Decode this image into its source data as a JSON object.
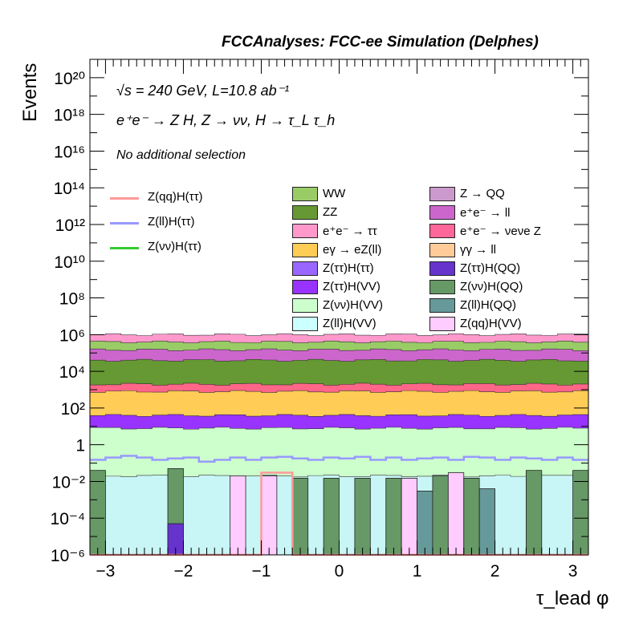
{
  "header": "FCCAnalyses: FCC-ee Simulation (Delphes)",
  "energy_label": "√s = 240 GeV, L=10.8 ab⁻¹",
  "process_label": "e⁺e⁻ → Z H, Z → νν, H → τ_L τ_h",
  "selection_label": "No additional selection",
  "chart_data": {
    "type": "bar",
    "stacked": true,
    "log_y": true,
    "xlabel": "τ_lead φ",
    "ylabel": "Events",
    "xlim": [
      -3.2,
      3.2
    ],
    "ylim": [
      1e-06,
      1e+21
    ],
    "x_ticks": [
      "−3",
      "−2",
      "−1",
      "0",
      "1",
      "2",
      "3"
    ],
    "y_ticks": [
      "10⁻⁶",
      "10⁻⁴",
      "10⁻²",
      "1",
      "10²",
      "10⁴",
      "10⁶",
      "10⁸",
      "10¹⁰",
      "10¹²",
      "10¹⁴",
      "10¹⁶",
      "10¹⁸",
      "10²⁰"
    ],
    "bins": 32,
    "stack_approx_levels": [
      {
        "name": "Z(ll)H(VV)",
        "color": "#c8f5f5",
        "value": 0.02
      },
      {
        "name": "Z(νν)H(VV)",
        "color": "#ccffcc",
        "value": 8
      },
      {
        "name": "Z(ττ)H(VV)",
        "color": "#9933ff",
        "value": 40
      },
      {
        "name": "eγ → eZ(ll)",
        "color": "#ffcc55",
        "value": 800
      },
      {
        "name": "e⁺e⁻ → νeνe Z",
        "color": "#ff6688",
        "value": 2000
      },
      {
        "name": "ZZ",
        "color": "#669933",
        "value": 40000
      },
      {
        "name": "e⁺e⁻ → ll",
        "color": "#cc66cc",
        "value": 150000
      },
      {
        "name": "WW",
        "color": "#99cc66",
        "value": 400000
      },
      {
        "name": "e⁺e⁻ → ττ",
        "color": "#ff99cc",
        "value": 1000000
      }
    ],
    "background_series": [
      {
        "name": "WW",
        "color": "#99cc66"
      },
      {
        "name": "ZZ",
        "color": "#669933"
      },
      {
        "name": "e⁺e⁻ → ττ",
        "color": "#ff99cc"
      },
      {
        "name": "eγ → eZ(ll)",
        "color": "#ffcc55"
      },
      {
        "name": "Z(ττ)H(ττ)",
        "color": "#9966ff"
      },
      {
        "name": "Z(ττ)H(VV)",
        "color": "#9933ff"
      },
      {
        "name": "Z(νν)H(VV)",
        "color": "#ccffcc"
      },
      {
        "name": "Z(ll)H(VV)",
        "color": "#ccffff"
      },
      {
        "name": "Z → QQ",
        "color": "#cc99cc"
      },
      {
        "name": "e⁺e⁻ → ll",
        "color": "#cc66cc"
      },
      {
        "name": "e⁺e⁻ → νeνe Z",
        "color": "#ff6699"
      },
      {
        "name": "γγ → ll",
        "color": "#ffcc99"
      },
      {
        "name": "Z(ττ)H(QQ)",
        "color": "#6633cc"
      },
      {
        "name": "Z(νν)H(QQ)",
        "color": "#669966"
      },
      {
        "name": "Z(ll)H(QQ)",
        "color": "#669999"
      },
      {
        "name": "Z(qq)H(VV)",
        "color": "#ffccff"
      }
    ],
    "signal_series": [
      {
        "name": "Z(qq)H(ττ)",
        "color": "#ff9999"
      },
      {
        "name": "Z(ll)H(ττ)",
        "color": "#9999ff"
      },
      {
        "name": "Z(νν)H(ττ)",
        "color": "#33cc33"
      }
    ],
    "bin_overlays": [
      {
        "bin": 0,
        "name": "Z(νν)H(QQ)",
        "value": 0.04
      },
      {
        "bin": 5,
        "name": "Z(νν)H(QQ)",
        "value": 0.05
      },
      {
        "bin": 5,
        "name": "Z(ττ)H(QQ)",
        "value": 5e-05
      },
      {
        "bin": 9,
        "name": "Z(qq)H(VV)",
        "value": 0.02
      },
      {
        "bin": 11,
        "name": "Z(qq)H(VV)",
        "value": 0.02
      },
      {
        "bin": 13,
        "name": "Z(νν)H(QQ)",
        "value": 0.015
      },
      {
        "bin": 15,
        "name": "Z(νν)H(QQ)",
        "value": 0.015
      },
      {
        "bin": 17,
        "name": "Z(νν)H(QQ)",
        "value": 0.015
      },
      {
        "bin": 19,
        "name": "Z(νν)H(QQ)",
        "value": 0.015
      },
      {
        "bin": 20,
        "name": "Z(qq)H(VV)",
        "value": 0.015
      },
      {
        "bin": 21,
        "name": "Z(ll)H(QQ)",
        "value": 0.003
      },
      {
        "bin": 22,
        "name": "Z(νν)H(QQ)",
        "value": 0.02
      },
      {
        "bin": 23,
        "name": "Z(qq)H(VV)",
        "value": 0.03
      },
      {
        "bin": 24,
        "name": "Z(νν)H(QQ)",
        "value": 0.015
      },
      {
        "bin": 25,
        "name": "Z(ll)H(QQ)",
        "value": 0.004
      },
      {
        "bin": 28,
        "name": "Z(νν)H(QQ)",
        "value": 0.04
      },
      {
        "bin": 31,
        "name": "Z(νν)H(QQ)",
        "value": 0.04
      }
    ],
    "signal_qq_values": [
      1e-06,
      1e-06,
      1e-06,
      1e-06,
      1e-06,
      1e-06,
      1e-06,
      1e-06,
      1e-06,
      1e-06,
      1e-06,
      0.03,
      0.03,
      1e-06,
      1e-06,
      1e-06,
      1e-06,
      1e-06,
      1e-06,
      1e-06,
      1e-06,
      1e-06,
      1e-06,
      1e-06,
      1e-06,
      1e-06,
      1e-06,
      1e-06,
      1e-06,
      1e-06,
      1e-06,
      1e-06
    ],
    "signal_ll_values": [
      0.15,
      0.2,
      0.25,
      0.2,
      0.15,
      0.18,
      0.2,
      0.12,
      0.15,
      0.2,
      0.15,
      0.2,
      0.22,
      0.18,
      0.15,
      0.2,
      0.18,
      0.22,
      0.15,
      0.2,
      0.15,
      0.18,
      0.2,
      0.15,
      0.22,
      0.2,
      0.15,
      0.2,
      0.18,
      0.15,
      0.2,
      0.15
    ]
  }
}
